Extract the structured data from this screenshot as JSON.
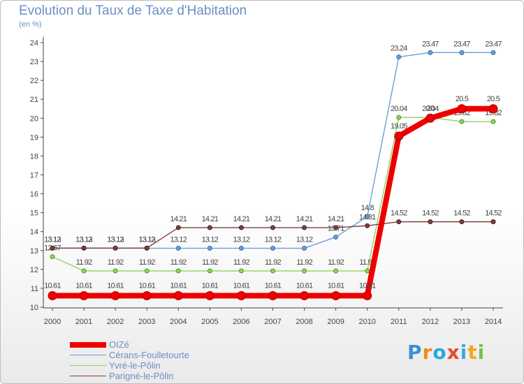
{
  "header": {
    "title": "Evolution du Taux de Taxe d'Habitation",
    "unit": "(en %)"
  },
  "brand": {
    "letters": [
      "P",
      "r",
      "o",
      "x",
      "i",
      "t",
      "i"
    ],
    "colors": [
      "#3d8fd6",
      "#f08a1c",
      "#2aa9df",
      "#e64b2f",
      "#3fa8dc",
      "#f5a623",
      "#7cc242"
    ]
  },
  "chart_data": {
    "type": "line",
    "title": "Evolution du Taux de Taxe d'Habitation",
    "ylabel": "(en %)",
    "xlabel": "",
    "x": [
      "2000",
      "2001",
      "2002",
      "2003",
      "2004",
      "2005",
      "2006",
      "2007",
      "2008",
      "2009",
      "2010",
      "2011",
      "2012",
      "2013",
      "2014"
    ],
    "ylim": [
      10,
      24
    ],
    "yticks": [
      "10",
      "11",
      "12",
      "13",
      "14",
      "15",
      "16",
      "17",
      "18",
      "19",
      "20",
      "21",
      "22",
      "23",
      "24"
    ],
    "grid": false,
    "legend_position": "bottom-left",
    "series": [
      {
        "name": "Cérans-Foulletourte",
        "color": "#6a9fd4",
        "values": [
          13.12,
          13.12,
          13.12,
          13.12,
          13.12,
          13.12,
          13.12,
          13.12,
          13.12,
          13.71,
          14.8,
          23.24,
          23.47,
          23.47,
          23.47
        ],
        "labels": [
          "13.12",
          "13.12",
          "13.12",
          "13.12",
          "13.12",
          "13.12",
          "13.12",
          "13.12",
          "13.12",
          "13.71",
          "14.8",
          "23.24",
          "23.47",
          "23.47",
          "23.47"
        ]
      },
      {
        "name": "Yvré-le-Pôlin",
        "color": "#8dd35f",
        "values": [
          12.67,
          11.92,
          11.92,
          11.92,
          11.92,
          11.92,
          11.92,
          11.92,
          11.92,
          11.92,
          11.92,
          20.04,
          20.04,
          19.82,
          19.82
        ],
        "labels": [
          "12.67",
          "11.92",
          "11.92",
          "11.92",
          "11.92",
          "11.92",
          "11.92",
          "11.92",
          "11.92",
          "11.92",
          "11.92",
          "20.04",
          "20.04",
          "19.82",
          "19.82"
        ]
      },
      {
        "name": "Parigné-le-Pôlin",
        "color": "#7b3f3f",
        "values": [
          13.13,
          13.13,
          13.13,
          13.13,
          14.21,
          14.21,
          14.21,
          14.21,
          14.21,
          14.21,
          14.31,
          14.52,
          14.52,
          14.52,
          14.52
        ],
        "labels": [
          "13.13",
          "13.13",
          "13.13",
          "13.13",
          "14.21",
          "14.21",
          "14.21",
          "14.21",
          "14.21",
          "14.21",
          "14.31",
          "14.52",
          "14.52",
          "14.52",
          "14.52"
        ]
      },
      {
        "name": "OIZé",
        "color": "#ee0000",
        "values": [
          10.61,
          10.61,
          10.61,
          10.61,
          10.61,
          10.61,
          10.61,
          10.61,
          10.61,
          10.61,
          10.61,
          19.05,
          20,
          20.5,
          20.5
        ],
        "labels": [
          "10.61",
          "10.61",
          "10.61",
          "10.61",
          "10.61",
          "10.61",
          "10.61",
          "10.61",
          "10.61",
          "10.61",
          "10.61",
          "19.05",
          "20",
          "20.5",
          "20.5"
        ]
      }
    ],
    "legend": [
      {
        "name": "OIZé",
        "color": "#ee0000",
        "width": 8
      },
      {
        "name": "Cérans-Foulletourte",
        "color": "#6a9fd4",
        "width": 1.5
      },
      {
        "name": "Yvré-le-Pôlin",
        "color": "#8dd35f",
        "width": 1.5
      },
      {
        "name": "Parigné-le-Pôlin",
        "color": "#7b3f3f",
        "width": 1.5
      }
    ]
  }
}
